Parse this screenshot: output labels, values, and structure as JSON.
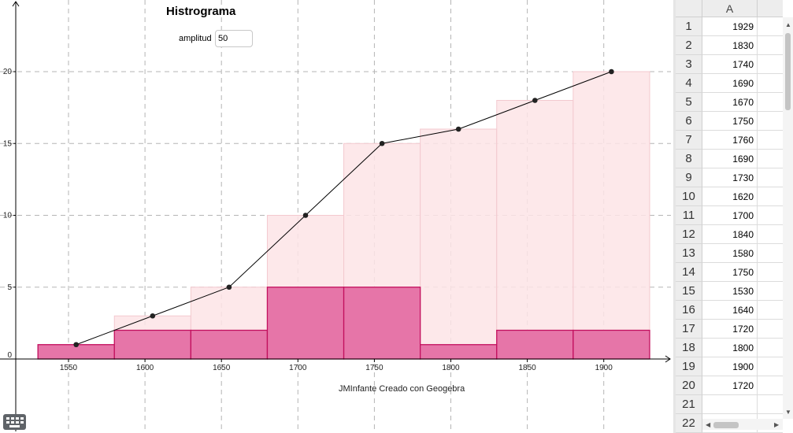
{
  "graphics": {
    "title": "Histrograma",
    "amplitude_label": "amplitud",
    "amplitude_value": "50",
    "credit": "JMInfante Creado con Geogebra",
    "keyboard_icon": "keyboard-icon"
  },
  "chart_data": {
    "type": "bar",
    "title": "Histrograma",
    "xlabel": "",
    "ylabel": "",
    "x_ticks": [
      1550,
      1600,
      1650,
      1700,
      1750,
      1800,
      1850,
      1900
    ],
    "y_ticks": [
      0,
      5,
      10,
      15,
      20
    ],
    "xlim": [
      1505,
      1950
    ],
    "ylim": [
      0,
      24
    ],
    "bin_width": 50,
    "bins": [
      {
        "from": 1530,
        "to": 1580,
        "frequency": 1,
        "cumulative": 1
      },
      {
        "from": 1580,
        "to": 1630,
        "frequency": 2,
        "cumulative": 3
      },
      {
        "from": 1630,
        "to": 1680,
        "frequency": 2,
        "cumulative": 5
      },
      {
        "from": 1680,
        "to": 1730,
        "frequency": 5,
        "cumulative": 10
      },
      {
        "from": 1730,
        "to": 1780,
        "frequency": 5,
        "cumulative": 15
      },
      {
        "from": 1780,
        "to": 1830,
        "frequency": 1,
        "cumulative": 16
      },
      {
        "from": 1830,
        "to": 1880,
        "frequency": 2,
        "cumulative": 18
      },
      {
        "from": 1880,
        "to": 1930,
        "frequency": 2,
        "cumulative": 20
      }
    ],
    "polygon": {
      "x": [
        1555,
        1605,
        1655,
        1705,
        1755,
        1805,
        1855,
        1905
      ],
      "y": [
        1,
        3,
        5,
        10,
        15,
        16,
        18,
        20
      ]
    },
    "grid": true,
    "colors": {
      "bar": "#e675a8",
      "bar_edge": "#c2105e",
      "cumulative": "#fde4e6",
      "line": "#000000"
    }
  },
  "spreadsheet": {
    "column_header": "A",
    "rows": [
      {
        "n": "1",
        "v": "1929"
      },
      {
        "n": "2",
        "v": "1830"
      },
      {
        "n": "3",
        "v": "1740"
      },
      {
        "n": "4",
        "v": "1690"
      },
      {
        "n": "5",
        "v": "1670"
      },
      {
        "n": "6",
        "v": "1750"
      },
      {
        "n": "7",
        "v": "1760"
      },
      {
        "n": "8",
        "v": "1690"
      },
      {
        "n": "9",
        "v": "1730"
      },
      {
        "n": "10",
        "v": "1620"
      },
      {
        "n": "11",
        "v": "1700"
      },
      {
        "n": "12",
        "v": "1840"
      },
      {
        "n": "13",
        "v": "1580"
      },
      {
        "n": "14",
        "v": "1750"
      },
      {
        "n": "15",
        "v": "1530"
      },
      {
        "n": "16",
        "v": "1640"
      },
      {
        "n": "17",
        "v": "1720"
      },
      {
        "n": "18",
        "v": "1800"
      },
      {
        "n": "19",
        "v": "1900"
      },
      {
        "n": "20",
        "v": "1720"
      },
      {
        "n": "21",
        "v": ""
      },
      {
        "n": "22",
        "v": ""
      }
    ]
  }
}
